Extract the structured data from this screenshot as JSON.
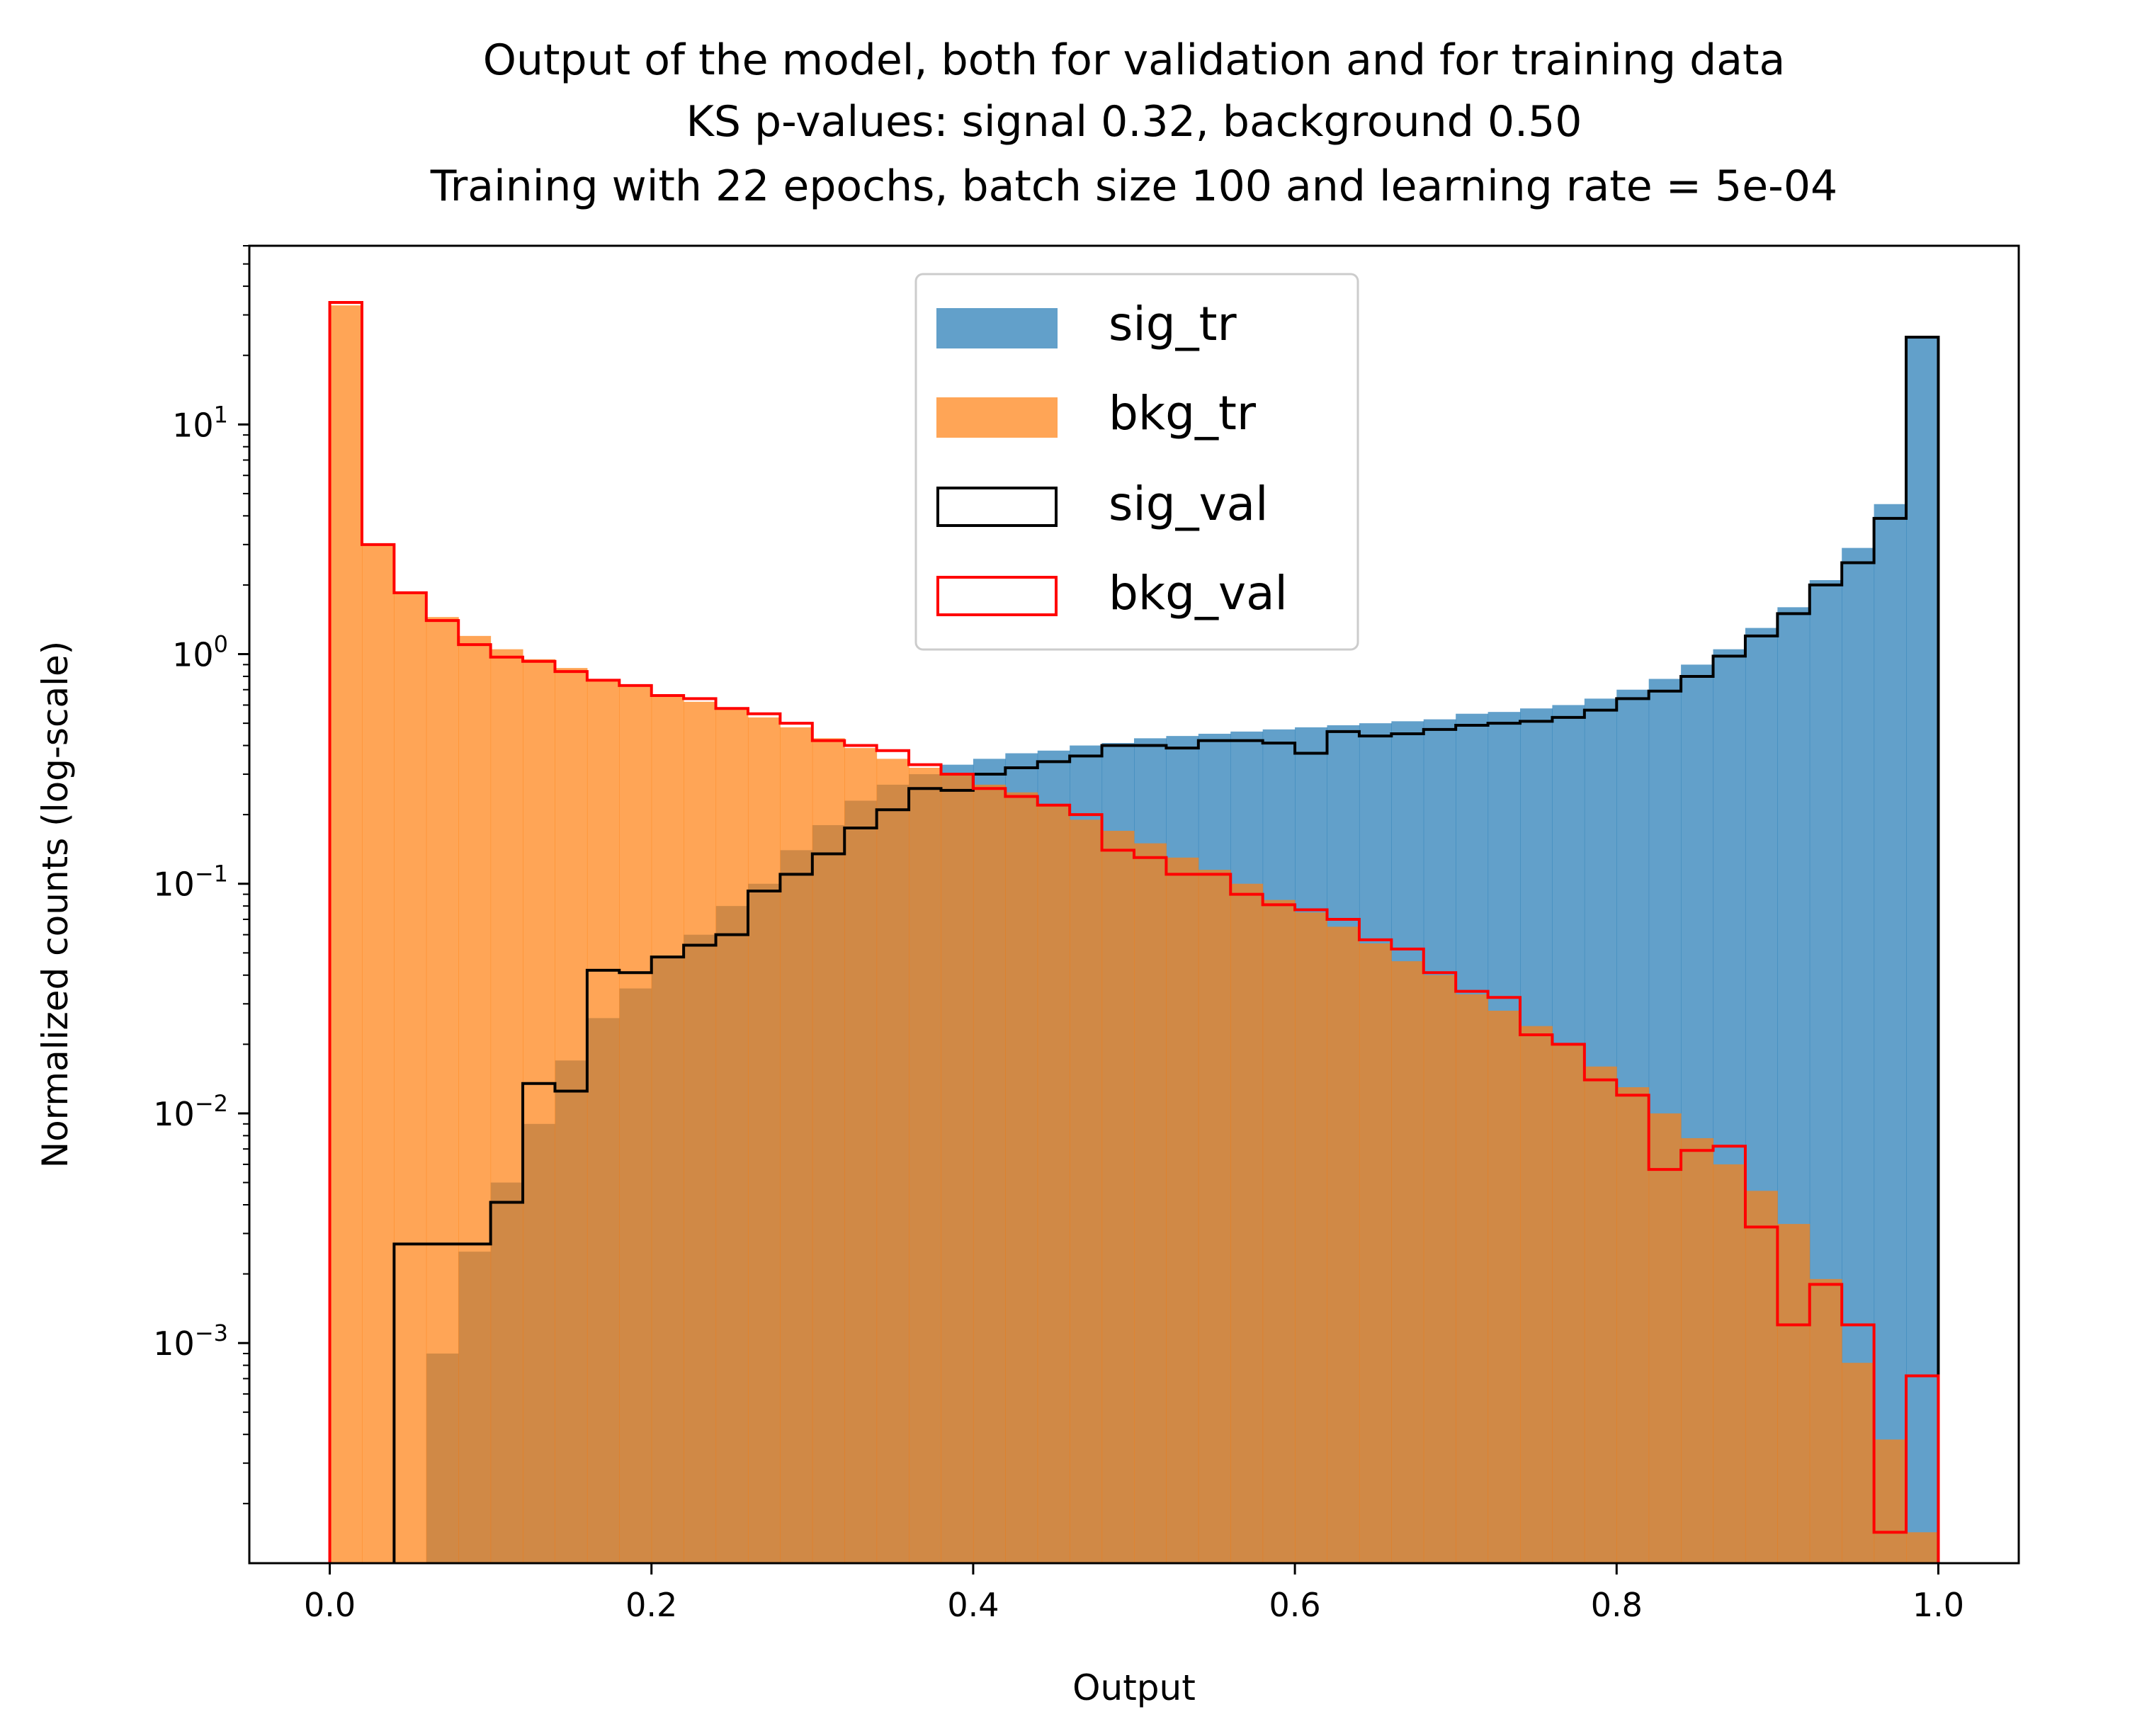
{
  "chart_data": {
    "type": "histogram",
    "title": [
      "Output of the model, both for validation and for training data",
      "KS p-values: signal 0.32, background 0.50",
      "Training with 22 epochs, batch size 100 and learning rate = 5e-04"
    ],
    "xlabel": "Output",
    "ylabel": "Normalized counts (log-scale)",
    "xlim": [
      -0.05,
      1.05
    ],
    "ylim": [
      0.00011,
      60
    ],
    "yscale": "log",
    "grid": false,
    "legend_position": "top-center",
    "xticks": [
      0.0,
      0.2,
      0.4,
      0.6,
      0.8,
      1.0
    ],
    "xtick_labels": [
      "0.0",
      "0.2",
      "0.4",
      "0.6",
      "0.8",
      "1.0"
    ],
    "yticks": [
      {
        "value": 0.001,
        "base": "10",
        "exp": "−3"
      },
      {
        "value": 0.01,
        "base": "10",
        "exp": "−2"
      },
      {
        "value": 0.1,
        "base": "10",
        "exp": "−1"
      },
      {
        "value": 1,
        "base": "10",
        "exp": "0"
      },
      {
        "value": 10,
        "base": "10",
        "exp": "1"
      }
    ],
    "bin_edges": [
      0.0,
      0.02,
      0.04,
      0.06,
      0.08,
      0.1,
      0.12,
      0.14,
      0.16,
      0.18,
      0.2,
      0.22,
      0.24,
      0.26,
      0.28,
      0.3,
      0.32,
      0.34,
      0.36,
      0.38,
      0.4,
      0.42,
      0.44,
      0.46,
      0.48,
      0.5,
      0.52,
      0.54,
      0.56,
      0.58,
      0.6,
      0.62,
      0.64,
      0.66,
      0.68,
      0.7,
      0.72,
      0.74,
      0.76,
      0.78,
      0.8,
      0.82,
      0.84,
      0.86,
      0.88,
      0.9,
      0.92,
      0.94,
      0.96,
      0.98,
      1.0
    ],
    "series": [
      {
        "name": "sig_tr",
        "style": "filled",
        "color": "#1f77b4",
        "alpha": 0.7,
        "values": [
          0,
          0,
          0,
          0.0009,
          0.0025,
          0.005,
          0.009,
          0.017,
          0.026,
          0.035,
          0.048,
          0.06,
          0.08,
          0.1,
          0.14,
          0.18,
          0.23,
          0.27,
          0.3,
          0.33,
          0.35,
          0.37,
          0.38,
          0.4,
          0.41,
          0.43,
          0.44,
          0.45,
          0.46,
          0.47,
          0.48,
          0.49,
          0.5,
          0.51,
          0.52,
          0.55,
          0.56,
          0.58,
          0.6,
          0.64,
          0.7,
          0.78,
          0.9,
          1.05,
          1.3,
          1.6,
          2.1,
          2.9,
          4.5,
          24.0
        ]
      },
      {
        "name": "bkg_tr",
        "style": "filled",
        "color": "#ff7f0e",
        "alpha": 0.7,
        "values": [
          33.0,
          3.0,
          1.85,
          1.45,
          1.2,
          1.05,
          0.95,
          0.87,
          0.78,
          0.72,
          0.66,
          0.62,
          0.58,
          0.53,
          0.48,
          0.43,
          0.39,
          0.35,
          0.32,
          0.3,
          0.27,
          0.25,
          0.22,
          0.19,
          0.17,
          0.15,
          0.13,
          0.115,
          0.1,
          0.085,
          0.075,
          0.065,
          0.055,
          0.046,
          0.04,
          0.033,
          0.028,
          0.024,
          0.02,
          0.016,
          0.013,
          0.01,
          0.0078,
          0.006,
          0.0046,
          0.0033,
          0.0019,
          0.00082,
          0.00038,
          0.00015
        ]
      },
      {
        "name": "sig_val",
        "style": "step",
        "color": "#000000",
        "values": [
          0,
          0,
          0.0027,
          0.0027,
          0.0027,
          0.0041,
          0.0135,
          0.0125,
          0.042,
          0.041,
          0.048,
          0.054,
          0.06,
          0.093,
          0.11,
          0.135,
          0.175,
          0.21,
          0.26,
          0.255,
          0.3,
          0.32,
          0.34,
          0.36,
          0.4,
          0.4,
          0.39,
          0.42,
          0.42,
          0.41,
          0.37,
          0.46,
          0.44,
          0.45,
          0.47,
          0.49,
          0.5,
          0.51,
          0.53,
          0.57,
          0.64,
          0.69,
          0.8,
          0.98,
          1.2,
          1.5,
          2.0,
          2.5,
          3.9,
          24.0
        ]
      },
      {
        "name": "bkg_val",
        "style": "step",
        "color": "#ff0000",
        "values": [
          34.0,
          3.0,
          1.85,
          1.4,
          1.1,
          0.97,
          0.93,
          0.84,
          0.77,
          0.73,
          0.66,
          0.64,
          0.58,
          0.55,
          0.5,
          0.42,
          0.4,
          0.38,
          0.33,
          0.3,
          0.26,
          0.24,
          0.22,
          0.2,
          0.14,
          0.13,
          0.11,
          0.11,
          0.09,
          0.081,
          0.077,
          0.07,
          0.057,
          0.052,
          0.041,
          0.034,
          0.032,
          0.022,
          0.02,
          0.014,
          0.012,
          0.0057,
          0.0069,
          0.0072,
          0.0032,
          0.0012,
          0.0018,
          0.0012,
          0.00015,
          0.00072
        ]
      }
    ]
  }
}
